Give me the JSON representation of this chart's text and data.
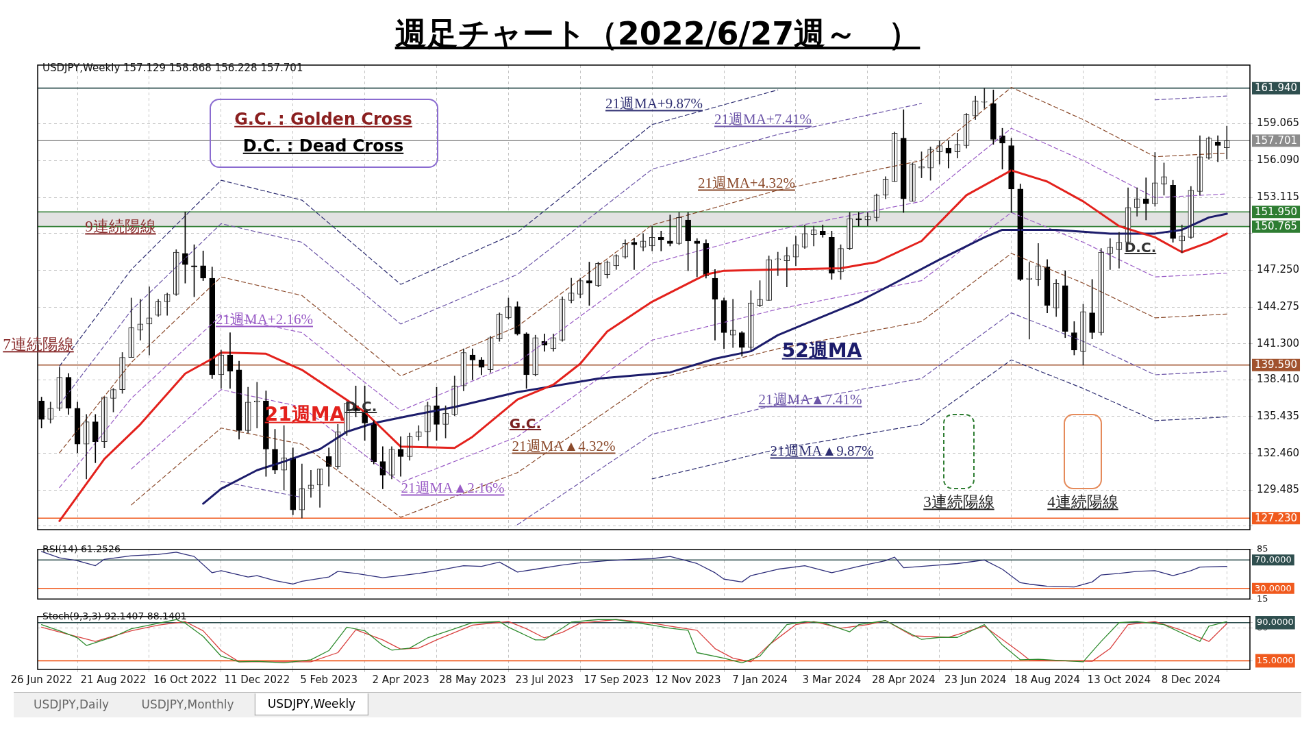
{
  "chart_data": [
    {
      "type": "candlestick",
      "title": "週足チャート（2022/6/27週～　）",
      "subtitle": "USDJPY,Weekly  157.129 158.868 156.228 157.701",
      "x": [
        "2022-06-26",
        "2022-07-03",
        "2022-07-10",
        "2022-07-17",
        "2022-07-24",
        "2022-07-31",
        "2022-08-07",
        "2022-08-14",
        "2022-08-21",
        "2022-08-28",
        "2022-09-04",
        "2022-09-11",
        "2022-09-18",
        "2022-09-25",
        "2022-10-02",
        "2022-10-09",
        "2022-10-16",
        "2022-10-23",
        "2022-10-30",
        "2022-11-06",
        "2022-11-13",
        "2022-11-20",
        "2022-11-27",
        "2022-12-04",
        "2022-12-11",
        "2022-12-18",
        "2022-12-25",
        "2023-01-01",
        "2023-01-08",
        "2023-01-15",
        "2023-01-22",
        "2023-01-29",
        "2023-02-05",
        "2023-02-12",
        "2023-02-19",
        "2023-02-26",
        "2023-03-05",
        "2023-03-12",
        "2023-03-19",
        "2023-03-26",
        "2023-04-02",
        "2023-04-09",
        "2023-04-16",
        "2023-04-23",
        "2023-04-30",
        "2023-05-07",
        "2023-05-14",
        "2023-05-21",
        "2023-05-28",
        "2023-06-04",
        "2023-06-11",
        "2023-06-18",
        "2023-06-25",
        "2023-07-02",
        "2023-07-09",
        "2023-07-16",
        "2023-07-23",
        "2023-07-30",
        "2023-08-06",
        "2023-08-13",
        "2023-08-20",
        "2023-08-27",
        "2023-09-03",
        "2023-09-10",
        "2023-09-17",
        "2023-09-24",
        "2023-10-01",
        "2023-10-08",
        "2023-10-15",
        "2023-10-22",
        "2023-10-29",
        "2023-11-05",
        "2023-11-12",
        "2023-11-19",
        "2023-11-26",
        "2023-12-03",
        "2023-12-10",
        "2023-12-17",
        "2023-12-24",
        "2023-12-31",
        "2024-01-07",
        "2024-01-14",
        "2024-01-21",
        "2024-01-28",
        "2024-02-04",
        "2024-02-11",
        "2024-02-18",
        "2024-02-25",
        "2024-03-03",
        "2024-03-10",
        "2024-03-17",
        "2024-03-24",
        "2024-03-31",
        "2024-04-07",
        "2024-04-14",
        "2024-04-21",
        "2024-04-28",
        "2024-05-05",
        "2024-05-12",
        "2024-05-19",
        "2024-05-26",
        "2024-06-02",
        "2024-06-09",
        "2024-06-16",
        "2024-06-23",
        "2024-06-30",
        "2024-07-07",
        "2024-07-14",
        "2024-07-21",
        "2024-07-28",
        "2024-08-04",
        "2024-08-11",
        "2024-08-18",
        "2024-08-25",
        "2024-09-01",
        "2024-09-08",
        "2024-09-15",
        "2024-09-22",
        "2024-09-29",
        "2024-10-06",
        "2024-10-13",
        "2024-10-20",
        "2024-10-27",
        "2024-11-03",
        "2024-11-10",
        "2024-11-17",
        "2024-11-24",
        "2024-12-01",
        "2024-12-08",
        "2024-12-15",
        "2024-12-22",
        "2024-12-29",
        "2025-01-05"
      ],
      "ohlc": [
        [
          136.7,
          137.0,
          134.5,
          135.2
        ],
        [
          135.2,
          136.6,
          134.9,
          136.1
        ],
        [
          136.1,
          139.4,
          135.9,
          138.6
        ],
        [
          138.6,
          138.9,
          135.6,
          136.1
        ],
        [
          136.1,
          136.6,
          132.5,
          133.2
        ],
        [
          133.2,
          135.6,
          130.4,
          135.0
        ],
        [
          135.0,
          135.6,
          131.7,
          133.4
        ],
        [
          133.4,
          137.0,
          132.9,
          137.0
        ],
        [
          136.9,
          137.7,
          135.8,
          137.6
        ],
        [
          137.6,
          140.6,
          137.3,
          140.2
        ],
        [
          140.2,
          145.0,
          140.2,
          142.6
        ],
        [
          142.4,
          144.9,
          141.6,
          142.9
        ],
        [
          142.9,
          145.9,
          140.4,
          143.4
        ],
        [
          143.6,
          144.9,
          143.5,
          144.7
        ],
        [
          144.7,
          145.4,
          143.6,
          145.3
        ],
        [
          145.3,
          148.9,
          145.2,
          148.7
        ],
        [
          148.6,
          151.95,
          146.2,
          147.7
        ],
        [
          147.6,
          149.3,
          145.1,
          147.5
        ],
        [
          147.6,
          148.8,
          146.4,
          146.6
        ],
        [
          146.6,
          147.5,
          138.5,
          138.8
        ],
        [
          138.8,
          140.8,
          137.7,
          140.4
        ],
        [
          140.4,
          142.2,
          137.7,
          139.1
        ],
        [
          139.2,
          139.9,
          133.6,
          134.3
        ],
        [
          134.3,
          137.8,
          134.1,
          136.6
        ],
        [
          136.6,
          138.2,
          134.5,
          136.7
        ],
        [
          136.7,
          137.5,
          130.6,
          132.8
        ],
        [
          132.8,
          134.4,
          130.8,
          131.1
        ],
        [
          131.1,
          134.7,
          129.5,
          132.1
        ],
        [
          132.1,
          132.9,
          127.5,
          127.9
        ],
        [
          127.9,
          131.6,
          127.23,
          129.6
        ],
        [
          129.6,
          131.1,
          128.9,
          129.9
        ],
        [
          129.9,
          131.2,
          128.1,
          131.2
        ],
        [
          132.2,
          132.9,
          129.8,
          131.4
        ],
        [
          131.4,
          134.8,
          131.2,
          134.2
        ],
        [
          134.2,
          136.6,
          133.9,
          136.5
        ],
        [
          136.3,
          137.9,
          135.4,
          135.9
        ],
        [
          135.9,
          137.9,
          133.5,
          134.9
        ],
        [
          134.9,
          135.1,
          131.6,
          131.8
        ],
        [
          131.8,
          133.0,
          129.6,
          130.7
        ],
        [
          130.7,
          133.0,
          130.4,
          132.8
        ],
        [
          132.8,
          133.8,
          130.6,
          132.2
        ],
        [
          132.2,
          134.1,
          131.9,
          133.8
        ],
        [
          133.8,
          134.7,
          133.5,
          134.2
        ],
        [
          134.2,
          136.6,
          133.0,
          136.3
        ],
        [
          136.3,
          137.8,
          133.5,
          134.8
        ],
        [
          134.8,
          136.3,
          133.7,
          135.7
        ],
        [
          135.6,
          138.7,
          135.5,
          137.9
        ],
        [
          137.9,
          140.9,
          137.5,
          140.6
        ],
        [
          140.4,
          140.9,
          138.4,
          140.0
        ],
        [
          140.0,
          140.2,
          138.8,
          139.4
        ],
        [
          139.2,
          141.9,
          139.0,
          141.8
        ],
        [
          141.7,
          143.8,
          141.5,
          143.7
        ],
        [
          143.4,
          145.0,
          143.3,
          144.3
        ],
        [
          144.3,
          144.7,
          142.0,
          142.1
        ],
        [
          142.1,
          142.2,
          137.7,
          138.8
        ],
        [
          138.8,
          142.0,
          138.7,
          141.8
        ],
        [
          141.5,
          142.1,
          140.7,
          141.2
        ],
        [
          140.9,
          142.1,
          140.7,
          141.8
        ],
        [
          141.6,
          145.1,
          141.5,
          144.9
        ],
        [
          144.8,
          146.6,
          144.6,
          145.4
        ],
        [
          145.3,
          146.6,
          145.0,
          146.4
        ],
        [
          146.4,
          147.9,
          144.4,
          146.2
        ],
        [
          146.0,
          147.9,
          145.9,
          147.8
        ],
        [
          146.9,
          148.0,
          146.6,
          147.9
        ],
        [
          147.6,
          148.5,
          147.3,
          148.4
        ],
        [
          148.3,
          149.7,
          148.2,
          149.4
        ],
        [
          149.5,
          149.8,
          147.3,
          149.3
        ],
        [
          149.1,
          150.2,
          148.8,
          149.6
        ],
        [
          149.2,
          150.8,
          148.8,
          149.9
        ],
        [
          149.9,
          150.4,
          148.8,
          149.7
        ],
        [
          149.6,
          151.7,
          149.2,
          149.4
        ],
        [
          149.4,
          151.9,
          149.3,
          151.5
        ],
        [
          151.3,
          151.9,
          147.2,
          149.6
        ],
        [
          149.6,
          149.8,
          146.7,
          149.4
        ],
        [
          149.4,
          149.7,
          146.6,
          146.8
        ],
        [
          146.6,
          147.3,
          141.6,
          144.9
        ],
        [
          144.8,
          145.0,
          140.9,
          142.2
        ],
        [
          142.0,
          144.9,
          141.0,
          142.4
        ],
        [
          142.2,
          142.3,
          140.3,
          141.0
        ],
        [
          141.0,
          145.6,
          140.8,
          144.6
        ],
        [
          144.4,
          146.4,
          144.3,
          144.9
        ],
        [
          144.8,
          148.4,
          144.8,
          148.1
        ],
        [
          148.1,
          148.7,
          146.8,
          148.1
        ],
        [
          148.0,
          149.1,
          145.9,
          148.4
        ],
        [
          148.3,
          150.0,
          147.6,
          149.3
        ],
        [
          149.1,
          150.9,
          149.0,
          150.2
        ],
        [
          150.1,
          150.8,
          149.2,
          150.5
        ],
        [
          150.4,
          150.9,
          149.9,
          150.1
        ],
        [
          149.9,
          150.4,
          146.5,
          147.0
        ],
        [
          147.1,
          149.3,
          146.5,
          149.0
        ],
        [
          149.0,
          151.9,
          148.9,
          151.4
        ],
        [
          151.4,
          151.9,
          150.8,
          151.3
        ],
        [
          151.3,
          151.9,
          150.8,
          151.6
        ],
        [
          151.5,
          153.4,
          151.2,
          153.3
        ],
        [
          153.3,
          154.8,
          153.0,
          154.6
        ],
        [
          154.4,
          158.4,
          154.4,
          158.3
        ],
        [
          157.9,
          160.2,
          151.9,
          153.0
        ],
        [
          152.8,
          155.9,
          152.8,
          155.8
        ],
        [
          155.5,
          156.8,
          154.7,
          155.6
        ],
        [
          155.5,
          157.2,
          154.5,
          157.0
        ],
        [
          156.8,
          157.7,
          155.8,
          157.3
        ],
        [
          157.1,
          157.7,
          155.5,
          156.7
        ],
        [
          156.8,
          158.3,
          156.3,
          157.4
        ],
        [
          157.3,
          159.9,
          157.1,
          159.8
        ],
        [
          159.7,
          161.3,
          159.4,
          160.9
        ],
        [
          160.8,
          161.94,
          160.3,
          160.8
        ],
        [
          160.7,
          161.8,
          157.4,
          157.8
        ],
        [
          158.1,
          158.7,
          155.4,
          157.5
        ],
        [
          157.3,
          157.9,
          151.9,
          153.8
        ],
        [
          153.8,
          154.2,
          146.4,
          146.5
        ],
        [
          146.5,
          147.9,
          141.68,
          146.6
        ],
        [
          146.5,
          149.4,
          146.0,
          147.6
        ],
        [
          147.5,
          148.1,
          143.8,
          144.4
        ],
        [
          144.2,
          146.5,
          143.5,
          146.2
        ],
        [
          146.0,
          147.2,
          141.8,
          142.3
        ],
        [
          142.2,
          143.1,
          140.4,
          140.8
        ],
        [
          140.7,
          144.5,
          139.58,
          143.9
        ],
        [
          143.8,
          146.5,
          141.7,
          142.2
        ],
        [
          142.2,
          149.0,
          142.0,
          148.7
        ],
        [
          148.6,
          149.8,
          147.3,
          149.1
        ],
        [
          148.9,
          150.3,
          147.4,
          149.5
        ],
        [
          149.5,
          153.9,
          149.4,
          152.3
        ],
        [
          152.3,
          153.9,
          151.6,
          153.0
        ],
        [
          153.0,
          154.7,
          151.3,
          152.6
        ],
        [
          152.6,
          156.75,
          152.4,
          154.3
        ],
        [
          154.2,
          155.9,
          153.3,
          154.8
        ],
        [
          154.1,
          154.5,
          149.5,
          149.8
        ],
        [
          149.6,
          150.9,
          148.65,
          150.0
        ],
        [
          149.9,
          154.0,
          149.8,
          153.7
        ],
        [
          153.6,
          158.1,
          153.3,
          156.4
        ],
        [
          156.3,
          158.0,
          156.2,
          157.9
        ],
        [
          157.6,
          158.1,
          156.0,
          157.3
        ],
        [
          157.129,
          158.868,
          156.228,
          157.701
        ]
      ],
      "series": [
        {
          "type": "line",
          "name": "21週MA",
          "color": "#e3211c",
          "line_style": "solid",
          "x": [
            "2022-07-10",
            "2022-08-14",
            "2022-09-11",
            "2022-10-16",
            "2022-11-06",
            "2022-11-13",
            "2022-12-18",
            "2023-01-15",
            "2023-03-05",
            "2023-04-02",
            "2023-05-14",
            "2023-05-28",
            "2023-07-02",
            "2023-07-30",
            "2023-08-20",
            "2023-09-10",
            "2023-10-15",
            "2023-11-26",
            "2023-12-10",
            "2024-01-21",
            "2024-03-10",
            "2024-04-07",
            "2024-05-12",
            "2024-06-16",
            "2024-07-21",
            "2024-08-18",
            "2024-09-15",
            "2024-10-13",
            "2024-11-10",
            "2024-12-01",
            "2024-12-22",
            "2025-01-05"
          ],
          "values": [
            127.0,
            132.0,
            134.8,
            138.9,
            140.1,
            140.6,
            140.5,
            139.2,
            135.8,
            133.0,
            132.9,
            133.8,
            136.8,
            138.0,
            139.7,
            142.3,
            144.7,
            146.9,
            147.2,
            147.3,
            147.4,
            147.9,
            149.6,
            153.3,
            155.3,
            154.4,
            152.8,
            150.8,
            149.9,
            148.7,
            149.5,
            150.2
          ]
        },
        {
          "type": "line",
          "name": "52週MA",
          "color": "#1c1c6b",
          "line_style": "solid",
          "x": [
            "2022-10-30",
            "2022-11-13",
            "2022-12-11",
            "2023-01-01",
            "2023-01-29",
            "2023-02-19",
            "2023-03-12",
            "2023-04-09",
            "2023-05-14",
            "2023-07-02",
            "2023-09-03",
            "2023-10-29",
            "2023-12-03",
            "2023-12-31",
            "2024-01-21",
            "2024-02-18",
            "2024-03-24",
            "2024-04-21",
            "2024-05-26",
            "2024-06-30",
            "2024-07-14",
            "2024-08-25",
            "2024-10-06",
            "2024-11-10",
            "2024-12-01",
            "2024-12-22",
            "2025-01-05"
          ],
          "values": [
            128.4,
            129.6,
            131.1,
            131.8,
            132.8,
            134.2,
            134.9,
            135.5,
            136.2,
            137.4,
            138.5,
            139.0,
            140.1,
            140.7,
            142.0,
            143.2,
            144.7,
            146.2,
            148.1,
            149.9,
            150.5,
            150.5,
            150.2,
            150.2,
            150.5,
            151.5,
            151.8
          ]
        },
        {
          "type": "line",
          "name": "21週MA+9.87%",
          "color": "#2e2e72",
          "line_style": "dashed",
          "x": [
            "2022-07-10",
            "2022-09-04",
            "2022-11-13",
            "2023-01-15",
            "2023-04-02",
            "2023-07-02",
            "2023-10-15",
            "2024-01-21"
          ],
          "values": [
            139.5,
            147.3,
            154.5,
            152.9,
            146.1,
            150.3,
            159.0,
            161.8
          ]
        },
        {
          "type": "line",
          "name": "21週MA+7.41%",
          "color": "#6c55a8",
          "line_style": "dashed",
          "x": [
            "2022-07-10",
            "2022-09-04",
            "2022-11-13",
            "2023-01-15",
            "2023-04-02",
            "2023-07-02",
            "2023-10-15",
            "2024-01-21",
            "2024-05-12",
            "2024-07-21",
            "2024-09-15",
            "2024-11-10",
            "2025-01-05"
          ],
          "values": [
            136.4,
            144.0,
            151.0,
            149.5,
            142.9,
            146.9,
            155.4,
            158.2,
            160.7,
            null,
            null,
            161.0,
            161.3
          ]
        },
        {
          "type": "line",
          "name": "21週MA+4.32%",
          "color": "#8b4a2b",
          "line_style": "dashed",
          "x": [
            "2022-07-10",
            "2022-09-04",
            "2022-11-13",
            "2023-01-15",
            "2023-04-02",
            "2023-07-02",
            "2023-10-15",
            "2024-01-21",
            "2024-05-12",
            "2024-07-21",
            "2024-09-15",
            "2024-11-10",
            "2025-01-05"
          ],
          "values": [
            132.5,
            139.8,
            146.7,
            145.2,
            138.7,
            142.7,
            150.9,
            153.7,
            156.1,
            162.0,
            159.4,
            156.4,
            156.7
          ]
        },
        {
          "type": "line",
          "name": "21週MA+2.16%",
          "color": "#9a5cc6",
          "line_style": "dashed",
          "x": [
            "2022-07-10",
            "2022-09-04",
            "2022-11-13",
            "2023-01-15",
            "2023-04-02",
            "2023-07-02",
            "2023-10-15",
            "2024-01-21",
            "2024-05-12",
            "2024-07-21",
            "2024-09-15",
            "2024-11-10",
            "2025-01-05"
          ],
          "values": [
            129.7,
            136.9,
            143.6,
            142.2,
            135.9,
            139.8,
            147.8,
            150.5,
            152.8,
            158.7,
            156.1,
            153.1,
            153.4
          ]
        },
        {
          "type": "line",
          "name": "21週MA▲2.16%",
          "color": "#9a5cc6",
          "line_style": "dashed",
          "x": [
            "2022-09-04",
            "2022-11-13",
            "2023-01-15",
            "2023-04-02",
            "2023-07-02",
            "2023-10-15",
            "2024-01-21",
            "2024-05-12",
            "2024-07-21",
            "2024-09-15",
            "2024-11-10",
            "2025-01-05"
          ],
          "values": [
            131.2,
            137.6,
            136.2,
            130.1,
            133.8,
            141.6,
            144.1,
            146.4,
            151.9,
            149.5,
            146.7,
            147.0
          ]
        },
        {
          "type": "line",
          "name": "21週MA▲4.32%",
          "color": "#8b4a2b",
          "line_style": "dashed",
          "x": [
            "2022-09-04",
            "2022-11-13",
            "2023-01-15",
            "2023-04-02",
            "2023-07-02",
            "2023-10-15",
            "2024-01-21",
            "2024-05-12",
            "2024-07-21",
            "2024-09-15",
            "2024-11-10",
            "2025-01-05"
          ],
          "values": [
            128.3,
            134.5,
            133.2,
            127.3,
            130.9,
            138.4,
            140.9,
            143.1,
            148.6,
            146.2,
            143.4,
            143.7
          ]
        },
        {
          "type": "line",
          "name": "21週MA▲7.41%",
          "color": "#6c55a8",
          "line_style": "dashed",
          "x": [
            "2022-11-13",
            "2023-01-15",
            "2023-04-02",
            "2023-07-02",
            "2023-10-15",
            "2024-01-21",
            "2024-05-12",
            "2024-07-21",
            "2024-09-15",
            "2024-11-10",
            "2025-01-05"
          ],
          "values": [
            130.2,
            128.9,
            null,
            126.7,
            134.0,
            136.4,
            138.5,
            143.8,
            141.5,
            138.8,
            139.1
          ]
        },
        {
          "type": "line",
          "name": "21週MA▲9.87%",
          "color": "#2e2e72",
          "line_style": "dashed",
          "x": [
            "2023-10-15",
            "2024-01-21",
            "2024-05-12",
            "2024-07-21",
            "2024-09-15",
            "2024-11-10",
            "2025-01-05"
          ],
          "values": [
            130.4,
            132.8,
            134.8,
            140.0,
            137.7,
            135.1,
            135.4
          ]
        }
      ],
      "xlim": [
        "2022-06-23",
        "2025-01-23"
      ],
      "xticks": [
        {
          "value": "2022-06-26",
          "label": null
        },
        {
          "value": "2022-08-21",
          "label": null
        },
        {
          "value": "2022-10-16",
          "label": null
        },
        {
          "value": "2022-12-11",
          "label": null
        },
        {
          "value": "2023-02-05",
          "label": null
        },
        {
          "value": "2023-04-02",
          "label": null
        },
        {
          "value": "2023-05-28",
          "label": null
        },
        {
          "value": "2023-07-23",
          "label": null
        },
        {
          "value": "2023-09-17",
          "label": null
        },
        {
          "value": "2023-11-12",
          "label": null
        },
        {
          "value": "2024-01-07",
          "label": null
        },
        {
          "value": "2024-03-03",
          "label": null
        },
        {
          "value": "2024-04-28",
          "label": null
        },
        {
          "value": "2024-06-23",
          "label": null
        },
        {
          "value": "2024-08-18",
          "label": null
        },
        {
          "value": "2024-10-13",
          "label": null
        },
        {
          "value": "2024-12-08",
          "label": null
        }
      ],
      "ylim": [
        126.3,
        163.8
      ],
      "yticks": [
        {
          "value": 126.595,
          "label": null
        },
        129.485,
        {
          "value": 132.46,
          "label": "132.460"
        },
        135.435,
        {
          "value": 138.41,
          "label": "138.410"
        },
        {
          "value": 141.3,
          "label": "141.300"
        },
        144.275,
        {
          "value": 147.25,
          "label": "147.250"
        },
        {
          "value": 150.225,
          "label": null
        },
        153.115,
        {
          "value": 156.09,
          "label": "156.090"
        },
        159.065
      ],
      "ref_lines": [
        {
          "axis": "y",
          "value": 161.94,
          "label": "161.940",
          "color": "#2f4f4f"
        },
        {
          "axis": "y",
          "value": 157.701,
          "label": "157.701",
          "color": "#8c8c8c"
        },
        {
          "axis": "y",
          "value": 151.95,
          "label": "151.950",
          "color": "#2e7d32"
        },
        {
          "axis": "y",
          "value": 150.765,
          "label": "150.765",
          "color": "#2e7d32"
        },
        {
          "axis": "y",
          "value": 139.59,
          "label": "139.590",
          "color": "#a0522d"
        },
        {
          "axis": "y",
          "value": 127.23,
          "label": "127.230",
          "color": "#f05a1e"
        }
      ],
      "bands": [
        {
          "axis": "y",
          "from": 150.765,
          "to": 151.95,
          "color": "#e2e2e2"
        }
      ],
      "annotations": [
        "9連続陽線",
        "7連続陽線",
        "3連続陽線",
        "4連続陽線",
        "G.C.",
        "D.C.",
        "D.C.",
        "G.C.  : Golden Cross",
        "D.C. : Dead Cross",
        "USDJPY,Daily",
        "USDJPY,Monthly",
        "USDJPY,Weekly"
      ],
      "grid": true,
      "tick_labels": "y"
    },
    {
      "type": "line",
      "title": "RSI(14) 61.2526",
      "series": [
        {
          "type": "line",
          "color": "#2d2d7a",
          "line_style": "solid",
          "x": [
            "2022-06-26",
            "2022-07-10",
            "2022-07-24",
            "2022-08-07",
            "2022-08-14",
            "2022-09-04",
            "2022-09-25",
            "2022-10-09",
            "2022-10-16",
            "2022-10-23",
            "2022-11-06",
            "2022-11-13",
            "2022-12-04",
            "2022-12-11",
            "2022-12-25",
            "2023-01-08",
            "2023-01-15",
            "2023-02-05",
            "2023-02-12",
            "2023-02-26",
            "2023-03-19",
            "2023-04-02",
            "2023-04-16",
            "2023-04-30",
            "2023-05-21",
            "2023-06-04",
            "2023-06-18",
            "2023-07-02",
            "2023-07-16",
            "2023-08-06",
            "2023-08-20",
            "2023-09-10",
            "2023-10-01",
            "2023-10-15",
            "2023-10-29",
            "2023-11-19",
            "2023-12-03",
            "2023-12-10",
            "2023-12-24",
            "2023-12-31",
            "2024-01-21",
            "2024-02-11",
            "2024-03-03",
            "2024-03-24",
            "2024-04-14",
            "2024-04-21",
            "2024-04-28",
            "2024-05-19",
            "2024-06-09",
            "2024-06-30",
            "2024-07-14",
            "2024-07-28",
            "2024-08-04",
            "2024-08-18",
            "2024-09-08",
            "2024-09-22",
            "2024-09-29",
            "2024-10-13",
            "2024-10-27",
            "2024-11-10",
            "2024-11-24",
            "2024-12-08",
            "2024-12-15",
            "2025-01-05"
          ],
          "values": [
            82,
            73,
            69,
            62,
            71,
            76,
            78,
            81,
            78,
            75,
            52,
            55,
            46,
            48,
            41,
            36,
            40,
            46,
            54,
            51,
            45,
            48,
            51,
            55,
            62,
            61,
            67,
            53,
            57,
            63,
            66,
            69,
            71,
            72,
            75,
            65,
            52,
            43,
            39,
            48,
            57,
            62,
            52,
            61,
            69,
            74,
            59,
            62,
            65,
            70,
            57,
            38,
            36,
            33,
            32,
            39,
            49,
            51,
            54,
            55,
            48,
            55,
            60,
            61
          ]
        }
      ],
      "xlim": [
        "2022-06-23",
        "2025-01-23"
      ],
      "xticks": [
        {
          "value": "2022-06-26",
          "label": null
        },
        {
          "value": "2022-08-21",
          "label": null
        },
        {
          "value": "2022-10-16",
          "label": null
        },
        {
          "value": "2022-12-11",
          "label": null
        },
        {
          "value": "2023-02-05",
          "label": null
        },
        {
          "value": "2023-04-02",
          "label": null
        },
        {
          "value": "2023-05-28",
          "label": null
        },
        {
          "value": "2023-07-23",
          "label": null
        },
        {
          "value": "2023-09-17",
          "label": null
        },
        {
          "value": "2023-11-12",
          "label": null
        },
        {
          "value": "2024-01-07",
          "label": null
        },
        {
          "value": "2024-03-03",
          "label": null
        },
        {
          "value": "2024-04-28",
          "label": null
        },
        {
          "value": "2024-06-23",
          "label": null
        },
        {
          "value": "2024-08-18",
          "label": null
        },
        {
          "value": "2024-10-13",
          "label": null
        },
        {
          "value": "2024-12-08",
          "label": null
        }
      ],
      "ylim": [
        15,
        85
      ],
      "yticks": [
        15,
        85
      ],
      "ref_lines": [
        {
          "axis": "y",
          "value": 70,
          "label": "70.0000",
          "color": "#2f4f4f"
        },
        {
          "axis": "y",
          "value": 30,
          "label": "30.0000",
          "color": "#f05a1e"
        }
      ],
      "grid": true,
      "tick_labels": "y"
    },
    {
      "type": "line",
      "title": "Stoch(9,3,3) 92.1407 88.1401",
      "series": [
        {
          "type": "line",
          "color": "#2e8b2e",
          "line_style": "solid",
          "x": [
            "2022-06-26",
            "2022-07-10",
            "2022-07-24",
            "2022-07-31",
            "2022-08-21",
            "2022-09-04",
            "2022-09-18",
            "2022-10-09",
            "2022-10-16",
            "2022-10-30",
            "2022-11-13",
            "2022-11-27",
            "2022-12-11",
            "2023-01-01",
            "2023-01-22",
            "2023-02-05",
            "2023-02-19",
            "2023-03-05",
            "2023-03-19",
            "2023-03-26",
            "2023-04-09",
            "2023-04-23",
            "2023-05-14",
            "2023-05-28",
            "2023-06-18",
            "2023-06-25",
            "2023-07-16",
            "2023-07-23",
            "2023-08-13",
            "2023-09-03",
            "2023-09-17",
            "2023-10-15",
            "2023-10-29",
            "2023-11-12",
            "2023-11-19",
            "2023-12-10",
            "2023-12-24",
            "2024-01-07",
            "2024-01-28",
            "2024-02-11",
            "2024-02-25",
            "2024-03-17",
            "2024-03-24",
            "2024-04-14",
            "2024-05-12",
            "2024-05-26",
            "2024-06-09",
            "2024-06-30",
            "2024-07-14",
            "2024-07-28",
            "2024-08-11",
            "2024-09-01",
            "2024-09-15",
            "2024-09-29",
            "2024-10-13",
            "2024-10-27",
            "2024-11-17",
            "2024-12-08",
            "2024-12-15",
            "2024-12-22",
            "2025-01-05"
          ],
          "values": [
            86,
            74,
            60,
            45,
            62,
            78,
            85,
            96,
            89,
            63,
            24,
            13,
            14,
            11,
            17,
            35,
            81,
            74,
            45,
            36,
            40,
            60,
            78,
            90,
            92,
            81,
            56,
            56,
            91,
            96,
            96,
            85,
            79,
            75,
            31,
            20,
            11,
            24,
            86,
            92,
            90,
            72,
            86,
            94,
            57,
            61,
            61,
            86,
            46,
            17,
            18,
            15,
            13,
            53,
            90,
            92,
            86,
            61,
            53,
            83,
            92
          ]
        },
        {
          "type": "line",
          "color": "#d9413f",
          "line_style": "solid",
          "x": [
            "2022-06-26",
            "2022-07-17",
            "2022-08-07",
            "2022-09-04",
            "2022-09-25",
            "2022-10-16",
            "2022-10-30",
            "2022-11-13",
            "2022-11-27",
            "2023-01-01",
            "2023-01-22",
            "2023-02-12",
            "2023-02-26",
            "2023-03-19",
            "2023-04-02",
            "2023-04-16",
            "2023-04-30",
            "2023-05-28",
            "2023-06-25",
            "2023-07-09",
            "2023-07-23",
            "2023-08-06",
            "2023-08-20",
            "2023-09-17",
            "2023-10-15",
            "2023-10-29",
            "2023-11-19",
            "2023-12-03",
            "2023-12-17",
            "2023-12-31",
            "2024-01-14",
            "2024-02-04",
            "2024-02-18",
            "2024-03-10",
            "2024-03-31",
            "2024-04-14",
            "2024-05-05",
            "2024-06-02",
            "2024-06-30",
            "2024-07-28",
            "2024-08-04",
            "2024-09-01",
            "2024-09-22",
            "2024-10-06",
            "2024-10-20",
            "2024-11-10",
            "2024-12-01",
            "2024-12-22",
            "2025-01-05"
          ],
          "values": [
            81,
            67,
            53,
            74,
            85,
            92,
            74,
            35,
            13,
            13,
            13,
            31,
            76,
            56,
            38,
            40,
            56,
            85,
            92,
            78,
            60,
            71,
            89,
            96,
            89,
            83,
            75,
            39,
            20,
            13,
            46,
            86,
            92,
            79,
            86,
            94,
            64,
            61,
            83,
            31,
            17,
            15,
            14,
            39,
            86,
            92,
            75,
            53,
            88
          ]
        }
      ],
      "xlim": [
        "2022-06-23",
        "2025-01-23"
      ],
      "xticks": [
        {
          "value": "2022-06-26",
          "label": "26 Jun 2022"
        },
        {
          "value": "2022-08-21",
          "label": "21 Aug 2022"
        },
        {
          "value": "2022-10-16",
          "label": "16 Oct 2022"
        },
        {
          "value": "2022-12-11",
          "label": "11 Dec 2022"
        },
        {
          "value": "2023-02-05",
          "label": "5 Feb 2023"
        },
        {
          "value": "2023-04-02",
          "label": "2 Apr 2023"
        },
        {
          "value": "2023-05-28",
          "label": "28 May 2023"
        },
        {
          "value": "2023-07-23",
          "label": "23 Jul 2023"
        },
        {
          "value": "2023-09-17",
          "label": "17 Sep 2023"
        },
        {
          "value": "2023-11-12",
          "label": "12 Nov 2023"
        },
        {
          "value": "2024-01-07",
          "label": "7 Jan 2024"
        },
        {
          "value": "2024-03-03",
          "label": "3 Mar 2024"
        },
        {
          "value": "2024-04-28",
          "label": "28 Apr 2024"
        },
        {
          "value": "2024-06-23",
          "label": "23 Jun 2024"
        },
        {
          "value": "2024-08-18",
          "label": "18 Aug 2024"
        },
        {
          "value": "2024-10-13",
          "label": "13 Oct 2024"
        },
        {
          "value": "2024-12-08",
          "label": "8 Dec 2024"
        }
      ],
      "ylim": [
        -2,
        102
      ],
      "yticks": [
        {
          "value": 15,
          "label": "15.0000"
        },
        80,
        {
          "value": 90,
          "label": "90.0000"
        }
      ],
      "ref_lines": [
        {
          "axis": "y",
          "value": 90,
          "color": "#2f4f4f"
        },
        {
          "axis": "y",
          "value": 15,
          "color": "#f05a1e"
        }
      ],
      "grid": true
    }
  ]
}
